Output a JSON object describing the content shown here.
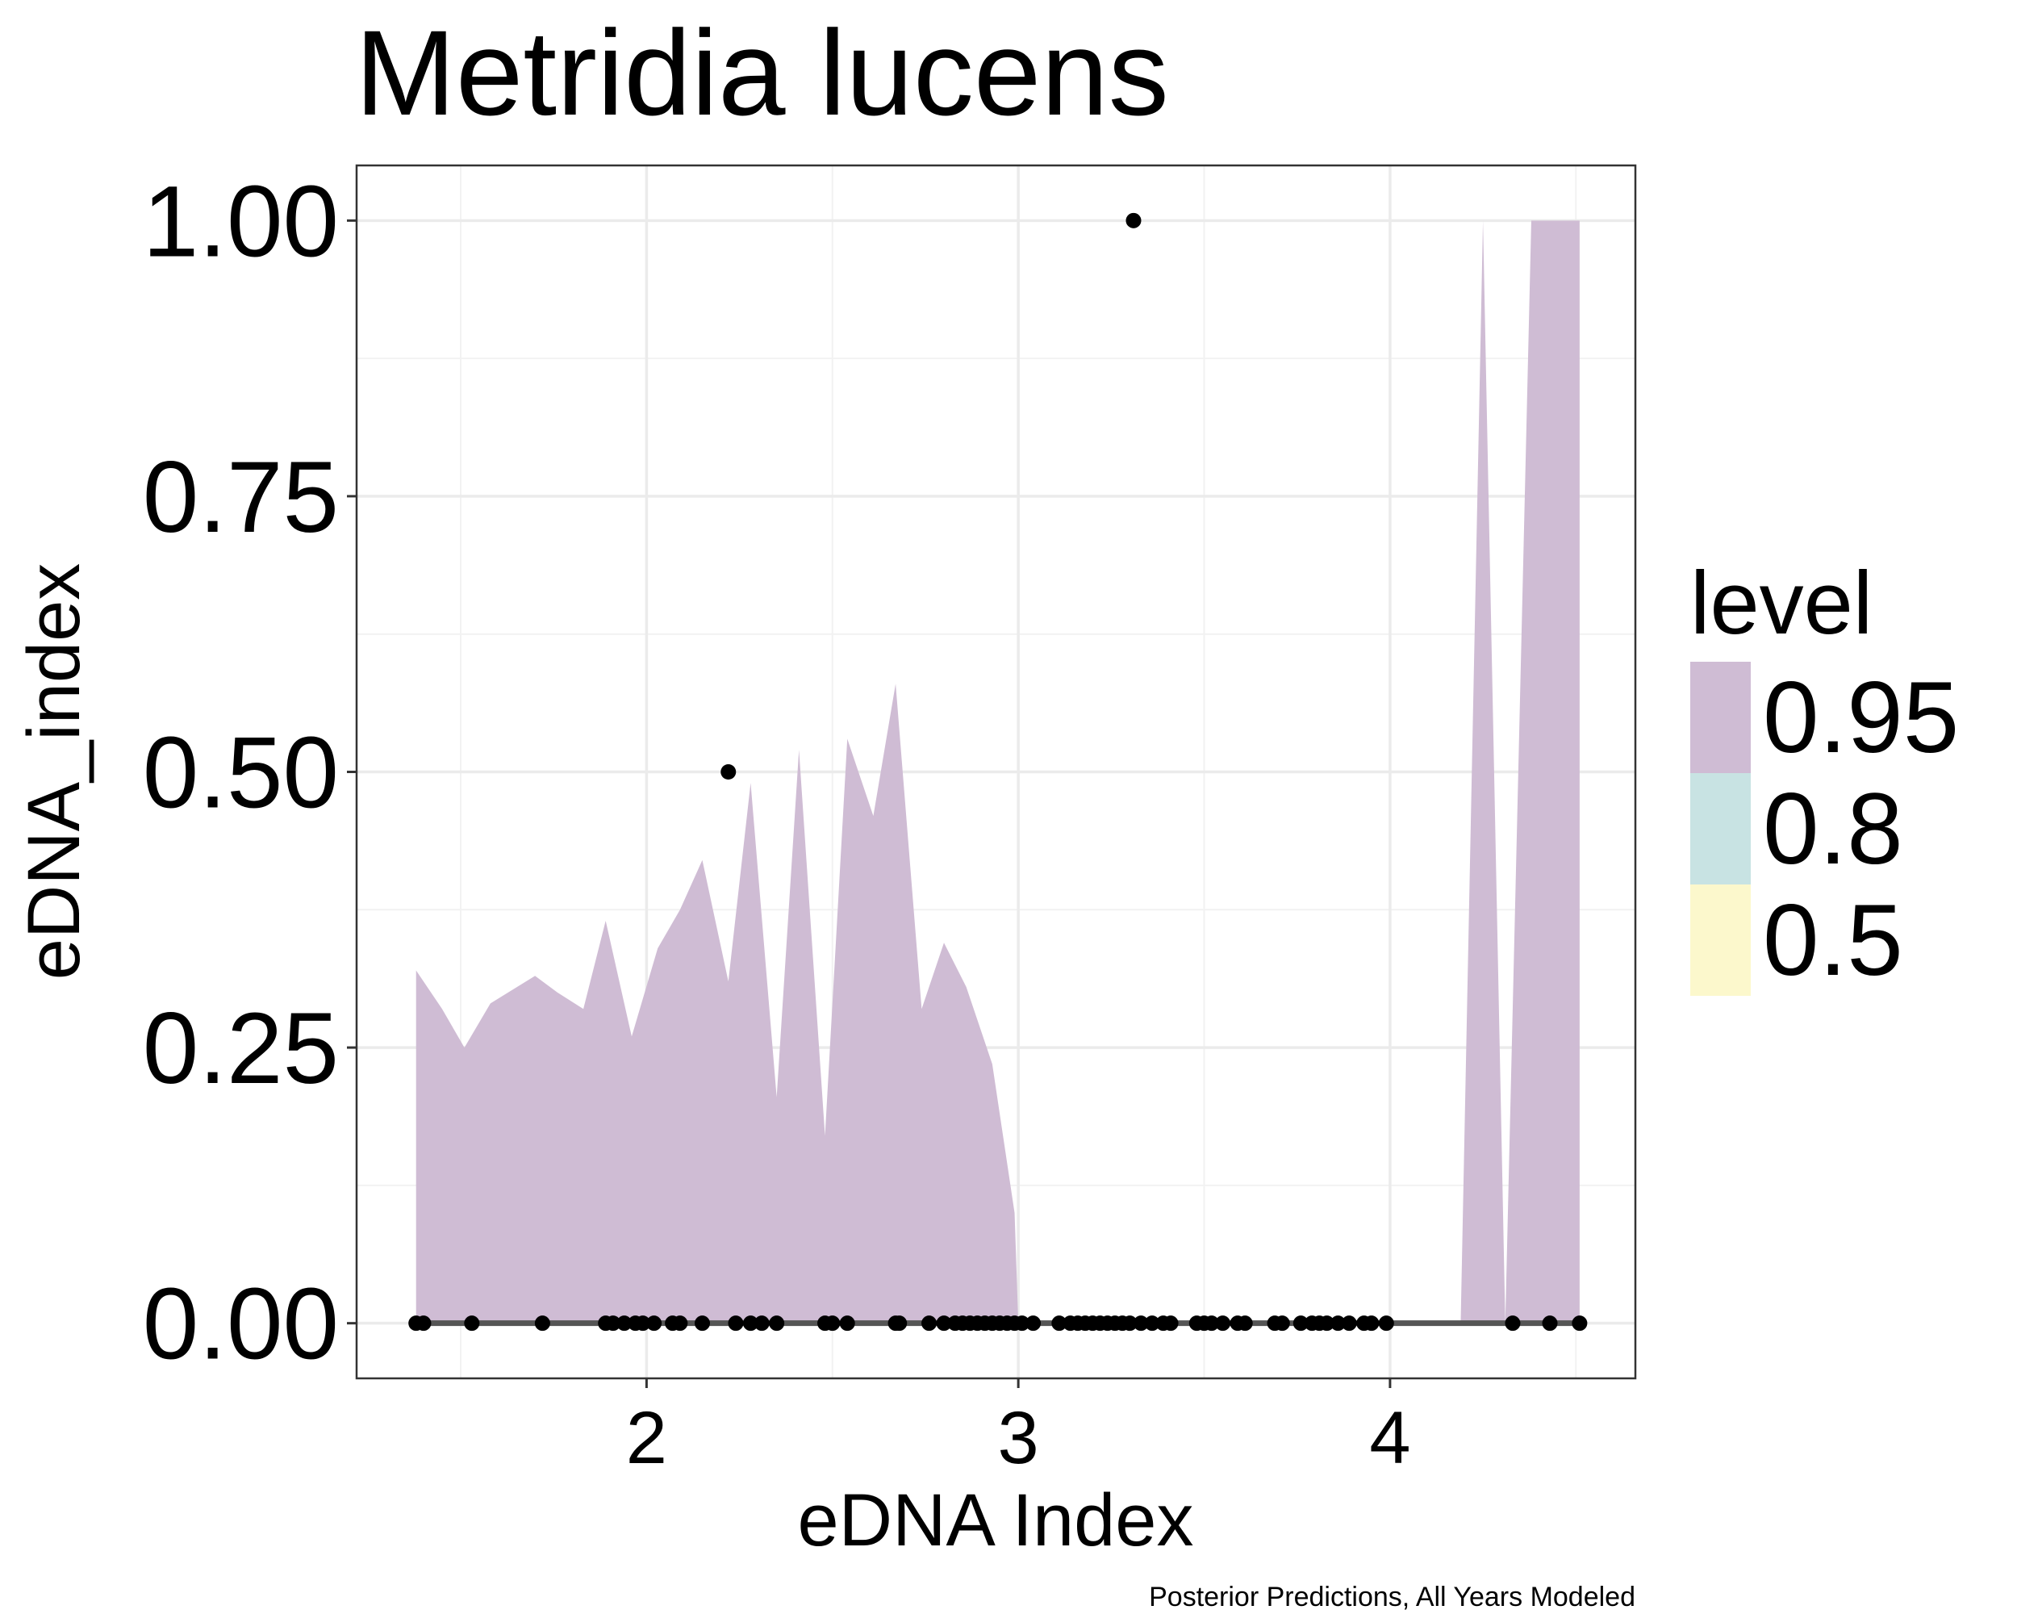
{
  "chart_data": {
    "type": "area",
    "title": "Metridia lucens",
    "xlabel": "eDNA Index",
    "ylabel": "eDNA_index",
    "caption": "Posterior Predictions, All Years Modeled",
    "xlim": [
      1.22,
      4.66
    ],
    "ylim": [
      -0.05,
      1.05
    ],
    "x_ticks": [
      2,
      3,
      4
    ],
    "x_minor_ticks": [
      1.5,
      2.5,
      3.5,
      4.5
    ],
    "y_ticks": [
      0,
      0.25,
      0.5,
      0.75,
      1
    ],
    "y_tick_labels": [
      "0.00",
      "0.25",
      "0.50",
      "0.75",
      "1.00"
    ],
    "y_minor_ticks": [
      0.125,
      0.375,
      0.625,
      0.875
    ],
    "grid": true,
    "legend": {
      "title": "level",
      "position": "right",
      "items": [
        {
          "label": "0.95",
          "color": "#cfbcd4"
        },
        {
          "label": "0.8",
          "color": "#c8e3e3"
        },
        {
          "label": "0.5",
          "color": "#fcf8cc"
        }
      ]
    },
    "interval_095": {
      "x": [
        1.38,
        1.45,
        1.51,
        1.58,
        1.7,
        1.76,
        1.83,
        1.89,
        1.96,
        2.03,
        2.09,
        2.15,
        2.22,
        2.28,
        2.35,
        2.41,
        2.48,
        2.54,
        2.61,
        2.67,
        2.74,
        2.8,
        2.86,
        2.93,
        2.99,
        3.0
      ],
      "upper": [
        0.32,
        0.285,
        0.25,
        0.29,
        0.315,
        0.3,
        0.285,
        0.365,
        0.26,
        0.34,
        0.375,
        0.42,
        0.31,
        0.49,
        0.205,
        0.52,
        0.17,
        0.53,
        0.46,
        0.58,
        0.285,
        0.345,
        0.305,
        0.235,
        0.1,
        0.0
      ]
    },
    "interval_095_right": {
      "x": [
        4.19,
        4.25,
        4.31,
        4.38,
        4.44,
        4.51
      ],
      "upper": [
        0.0,
        1.0,
        0.0,
        1.0,
        1.0,
        1.0
      ]
    },
    "median_line": {
      "x": [
        1.38,
        4.51
      ],
      "y": [
        0,
        0
      ]
    },
    "points": [
      {
        "x": 1.38,
        "y": 0
      },
      {
        "x": 1.4,
        "y": 0
      },
      {
        "x": 1.53,
        "y": 0
      },
      {
        "x": 1.72,
        "y": 0
      },
      {
        "x": 1.89,
        "y": 0
      },
      {
        "x": 1.91,
        "y": 0
      },
      {
        "x": 1.94,
        "y": 0
      },
      {
        "x": 1.97,
        "y": 0
      },
      {
        "x": 1.99,
        "y": 0
      },
      {
        "x": 2.02,
        "y": 0
      },
      {
        "x": 2.07,
        "y": 0
      },
      {
        "x": 2.09,
        "y": 0
      },
      {
        "x": 2.15,
        "y": 0
      },
      {
        "x": 2.22,
        "y": 0.5
      },
      {
        "x": 2.24,
        "y": 0
      },
      {
        "x": 2.28,
        "y": 0
      },
      {
        "x": 2.31,
        "y": 0
      },
      {
        "x": 2.35,
        "y": 0
      },
      {
        "x": 2.48,
        "y": 0
      },
      {
        "x": 2.5,
        "y": 0
      },
      {
        "x": 2.54,
        "y": 0
      },
      {
        "x": 2.67,
        "y": 0
      },
      {
        "x": 2.68,
        "y": 0
      },
      {
        "x": 2.76,
        "y": 0
      },
      {
        "x": 2.8,
        "y": 0
      },
      {
        "x": 2.83,
        "y": 0
      },
      {
        "x": 2.85,
        "y": 0
      },
      {
        "x": 2.87,
        "y": 0
      },
      {
        "x": 2.89,
        "y": 0
      },
      {
        "x": 2.91,
        "y": 0
      },
      {
        "x": 2.93,
        "y": 0
      },
      {
        "x": 2.95,
        "y": 0
      },
      {
        "x": 2.97,
        "y": 0
      },
      {
        "x": 2.99,
        "y": 0
      },
      {
        "x": 3.01,
        "y": 0
      },
      {
        "x": 3.04,
        "y": 0
      },
      {
        "x": 3.11,
        "y": 0
      },
      {
        "x": 3.14,
        "y": 0
      },
      {
        "x": 3.16,
        "y": 0
      },
      {
        "x": 3.18,
        "y": 0
      },
      {
        "x": 3.2,
        "y": 0
      },
      {
        "x": 3.22,
        "y": 0
      },
      {
        "x": 3.24,
        "y": 0
      },
      {
        "x": 3.26,
        "y": 0
      },
      {
        "x": 3.28,
        "y": 0
      },
      {
        "x": 3.3,
        "y": 0
      },
      {
        "x": 3.31,
        "y": 1.0
      },
      {
        "x": 3.33,
        "y": 0
      },
      {
        "x": 3.36,
        "y": 0
      },
      {
        "x": 3.39,
        "y": 0
      },
      {
        "x": 3.41,
        "y": 0
      },
      {
        "x": 3.48,
        "y": 0
      },
      {
        "x": 3.5,
        "y": 0
      },
      {
        "x": 3.52,
        "y": 0
      },
      {
        "x": 3.55,
        "y": 0
      },
      {
        "x": 3.59,
        "y": 0
      },
      {
        "x": 3.61,
        "y": 0
      },
      {
        "x": 3.69,
        "y": 0
      },
      {
        "x": 3.71,
        "y": 0
      },
      {
        "x": 3.76,
        "y": 0
      },
      {
        "x": 3.79,
        "y": 0
      },
      {
        "x": 3.81,
        "y": 0
      },
      {
        "x": 3.83,
        "y": 0
      },
      {
        "x": 3.86,
        "y": 0
      },
      {
        "x": 3.89,
        "y": 0
      },
      {
        "x": 3.93,
        "y": 0
      },
      {
        "x": 3.95,
        "y": 0
      },
      {
        "x": 3.99,
        "y": 0
      },
      {
        "x": 4.33,
        "y": 0
      },
      {
        "x": 4.43,
        "y": 0
      },
      {
        "x": 4.51,
        "y": 0
      }
    ]
  }
}
